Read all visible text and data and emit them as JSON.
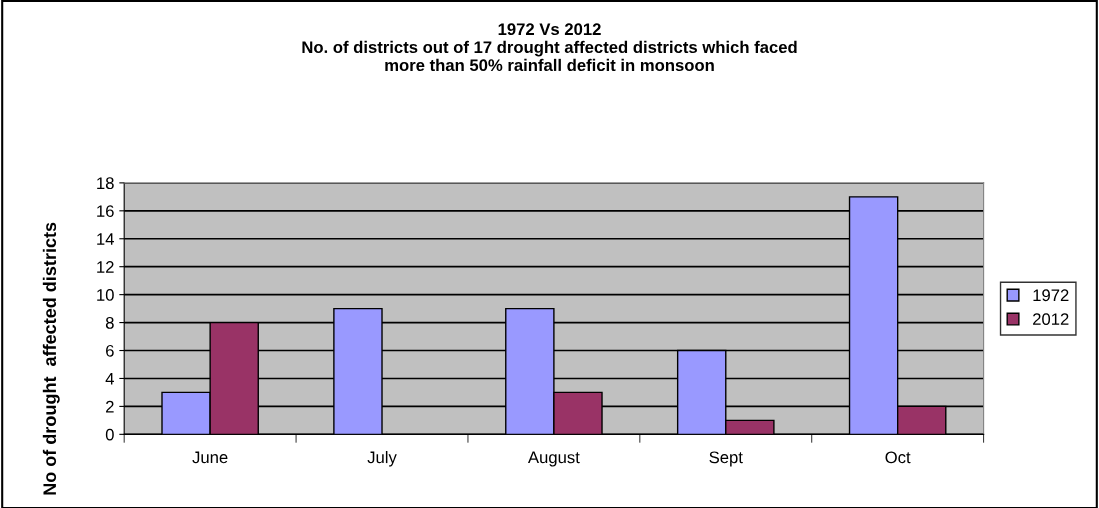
{
  "chart_data": {
    "type": "bar",
    "title": "1972 Vs 2012\nNo. of districts out of 17 drought affected districts which faced\nmore than 50% rainfall deficit in monsoon",
    "ylabel": "No of drought  affected districts",
    "categories": [
      "June",
      "July",
      "August",
      "Sept",
      "Oct"
    ],
    "series": [
      {
        "name": "1972",
        "color": "#9999ff",
        "values": [
          3,
          9,
          9,
          6,
          17
        ]
      },
      {
        "name": "2012",
        "color": "#993366",
        "values": [
          8,
          0,
          3,
          1,
          2
        ]
      }
    ],
    "ylim": [
      0,
      18
    ],
    "yticks": [
      0,
      2,
      4,
      6,
      8,
      10,
      12,
      14,
      16,
      18
    ],
    "grid": "y",
    "legend": "right"
  }
}
